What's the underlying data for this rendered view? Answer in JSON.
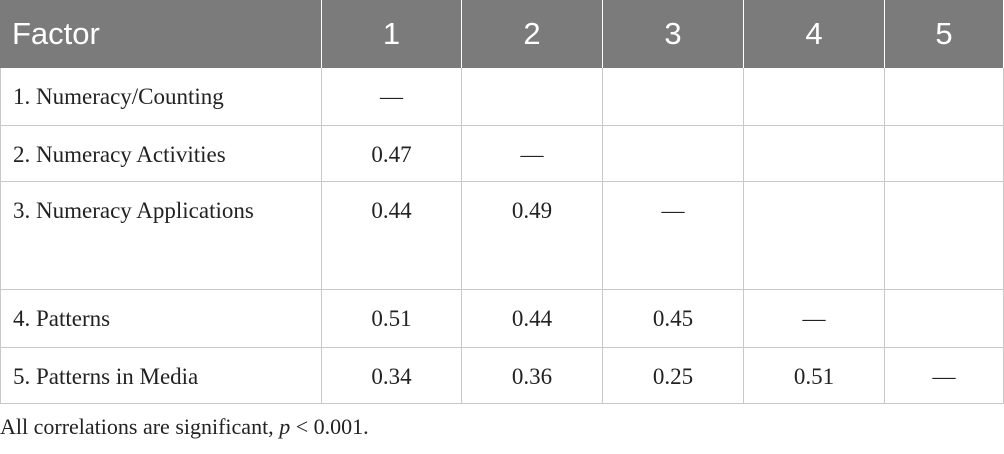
{
  "table": {
    "header": [
      "Factor",
      "1",
      "2",
      "3",
      "4",
      "5"
    ],
    "rows": [
      [
        "1. Numeracy/Counting",
        "—",
        null,
        null,
        null,
        null
      ],
      [
        "2. Numeracy Activities",
        "0.47",
        "—",
        null,
        null,
        null
      ],
      [
        "3. Numeracy Applications",
        "0.44",
        "0.49",
        "—",
        null,
        null
      ],
      [
        "4. Patterns",
        "0.51",
        "0.44",
        "0.45",
        "—",
        null
      ],
      [
        "5. Patterns in Media",
        "0.34",
        "0.36",
        "0.25",
        "0.51",
        "—"
      ]
    ]
  },
  "note": {
    "before": "All correlations are significant, ",
    "italic": "p",
    "after": " < 0.001."
  }
}
